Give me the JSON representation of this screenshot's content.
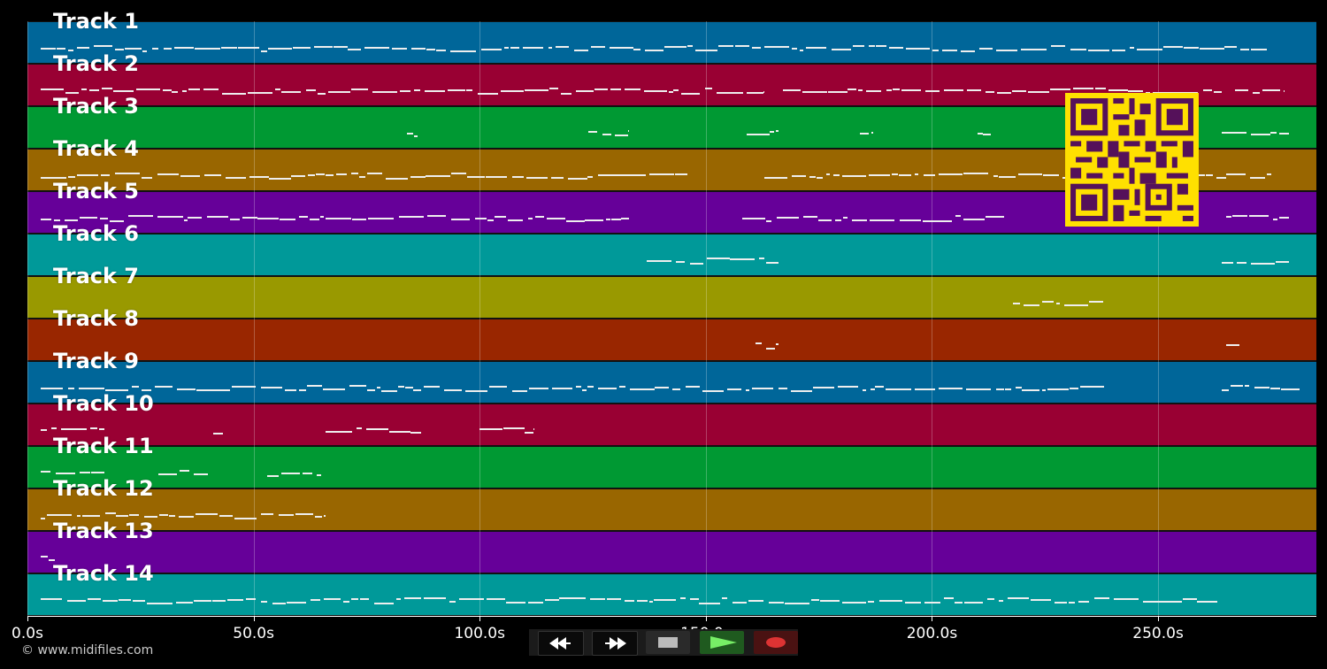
{
  "tracks": [
    {
      "name": "Track 1",
      "color": "#006699"
    },
    {
      "name": "Track 2",
      "color": "#990033"
    },
    {
      "name": "Track 3",
      "color": "#009933"
    },
    {
      "name": "Track 4",
      "color": "#996600"
    },
    {
      "name": "Track 5",
      "color": "#660099"
    },
    {
      "name": "Track 6",
      "color": "#009999"
    },
    {
      "name": "Track 7",
      "color": "#999900"
    },
    {
      "name": "Track 8",
      "color": "#992600"
    },
    {
      "name": "Track 9",
      "color": "#006699"
    },
    {
      "name": "Track 10",
      "color": "#990033"
    },
    {
      "name": "Track 11",
      "color": "#009933"
    },
    {
      "name": "Track 12",
      "color": "#996600"
    },
    {
      "name": "Track 13",
      "color": "#660099"
    },
    {
      "name": "Track 14",
      "color": "#009999"
    }
  ],
  "time_axis": {
    "min": 0,
    "max": 285,
    "ticks": [
      {
        "value": 0,
        "label": "0.0s"
      },
      {
        "value": 50,
        "label": "50.0s"
      },
      {
        "value": 100,
        "label": "100.0s"
      },
      {
        "value": 150,
        "label": "150.0s"
      },
      {
        "value": 200,
        "label": "200.0s"
      },
      {
        "value": 250,
        "label": "250.0s"
      }
    ]
  },
  "note_segments": [
    {
      "track": 0,
      "ranges": [
        [
          3,
          274
        ]
      ]
    },
    {
      "track": 1,
      "ranges": [
        [
          3,
          163
        ],
        [
          167,
          264
        ],
        [
          267,
          278
        ]
      ]
    },
    {
      "track": 2,
      "ranges": [
        [
          84,
          87
        ],
        [
          124,
          133
        ],
        [
          159,
          166
        ],
        [
          184,
          187
        ],
        [
          210,
          213
        ],
        [
          264,
          279
        ]
      ]
    },
    {
      "track": 3,
      "ranges": [
        [
          3,
          146
        ],
        [
          163,
          265
        ],
        [
          265,
          275
        ]
      ]
    },
    {
      "track": 4,
      "ranges": [
        [
          3,
          133
        ],
        [
          158,
          216
        ],
        [
          265,
          279
        ]
      ]
    },
    {
      "track": 5,
      "ranges": [
        [
          137,
          166
        ],
        [
          264,
          279
        ]
      ]
    },
    {
      "track": 6,
      "ranges": [
        [
          218,
          238
        ]
      ]
    },
    {
      "track": 7,
      "ranges": [
        [
          161,
          166
        ],
        [
          265,
          268
        ]
      ]
    },
    {
      "track": 8,
      "ranges": [
        [
          3,
          238
        ],
        [
          264,
          282
        ]
      ]
    },
    {
      "track": 9,
      "ranges": [
        [
          3,
          17
        ],
        [
          41,
          44
        ],
        [
          66,
          74
        ],
        [
          75,
          87
        ],
        [
          100,
          112
        ]
      ]
    },
    {
      "track": 10,
      "ranges": [
        [
          3,
          17
        ],
        [
          29,
          40
        ],
        [
          53,
          65
        ]
      ]
    },
    {
      "track": 11,
      "ranges": [
        [
          3,
          66
        ]
      ]
    },
    {
      "track": 12,
      "ranges": [
        [
          3,
          6
        ]
      ]
    },
    {
      "track": 13,
      "ranges": [
        [
          3,
          263
        ]
      ]
    }
  ],
  "copyright": "© www.midifiles.com",
  "controls": {
    "rewind_icon": "rewind-icon",
    "forward_icon": "fast-forward-icon",
    "stop_icon": "stop-icon",
    "play_icon": "play-icon",
    "record_icon": "record-icon"
  },
  "qr_code": {
    "icon": "qr-code-icon"
  }
}
